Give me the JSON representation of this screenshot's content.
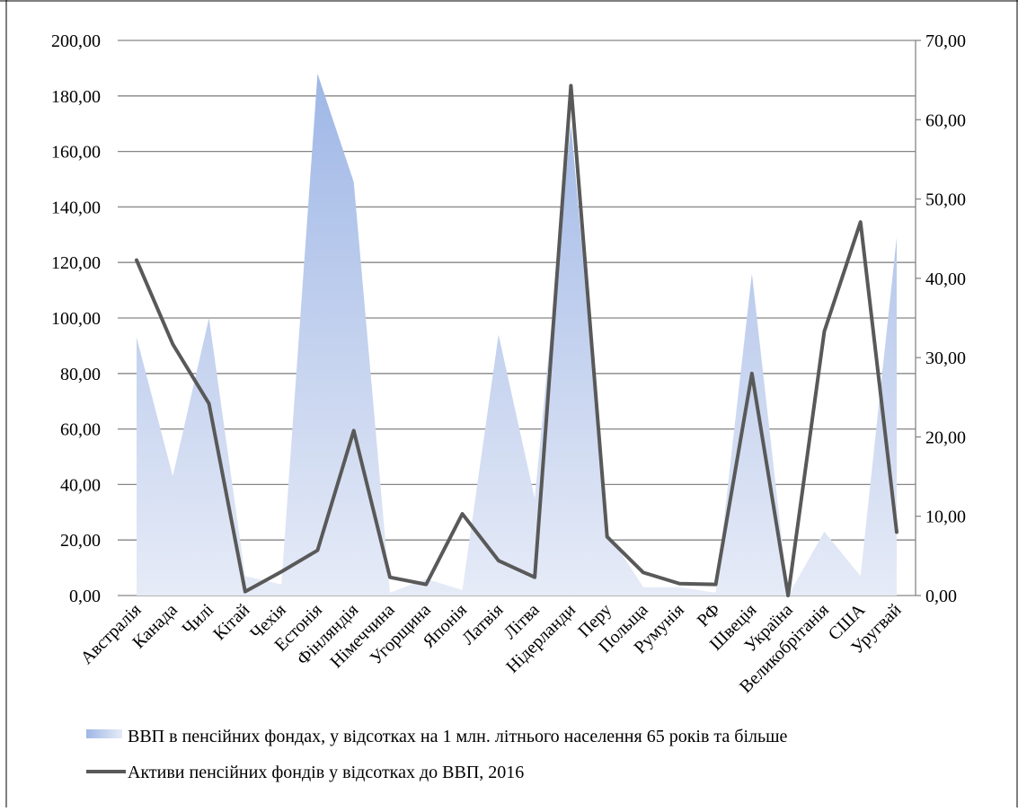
{
  "chart_data": {
    "type": "combo",
    "categories": [
      "Австралія",
      "Канада",
      "Чилі",
      "Кітай",
      "Чехія",
      "Естонія",
      "Фінляндія",
      "Німеччина",
      "Угорщина",
      "Японія",
      "Латвія",
      "Літва",
      "Нідерланди",
      "Перу",
      "Польща",
      "Румунія",
      "РФ",
      "Швеція",
      "Україна",
      "Великобрітанія",
      "США",
      "Уругвай"
    ],
    "series": [
      {
        "name": "ВВП в пенсійних фондах, у відсотках на 1 млн. літнього населення 65 років та більше",
        "type": "area",
        "axis": "left",
        "values": [
          93,
          43,
          100,
          7,
          4,
          188,
          149,
          1,
          6,
          2,
          94,
          35,
          170,
          23,
          3,
          3,
          1,
          116,
          0,
          23,
          7,
          129
        ]
      },
      {
        "name": "Активи пенсійних фондів у відсотках до ВВП, 2016",
        "type": "line",
        "axis": "right",
        "values": [
          42.3,
          31.7,
          24.2,
          0.5,
          3.0,
          5.7,
          20.8,
          2.3,
          1.4,
          10.3,
          4.4,
          2.3,
          64.3,
          7.4,
          2.9,
          1.5,
          1.4,
          28.0,
          0.0,
          33.3,
          47.1,
          8.0
        ]
      }
    ],
    "y_left": {
      "min": 0,
      "max": 200,
      "step": 20
    },
    "y_right": {
      "min": 0,
      "max": 70,
      "step": 10
    },
    "grid": true,
    "legend_position": "bottom"
  },
  "colors": {
    "area_top": "#9fb7e6",
    "area_bottom": "#e6ebf7",
    "line": "#595959",
    "grid": "#868686"
  }
}
